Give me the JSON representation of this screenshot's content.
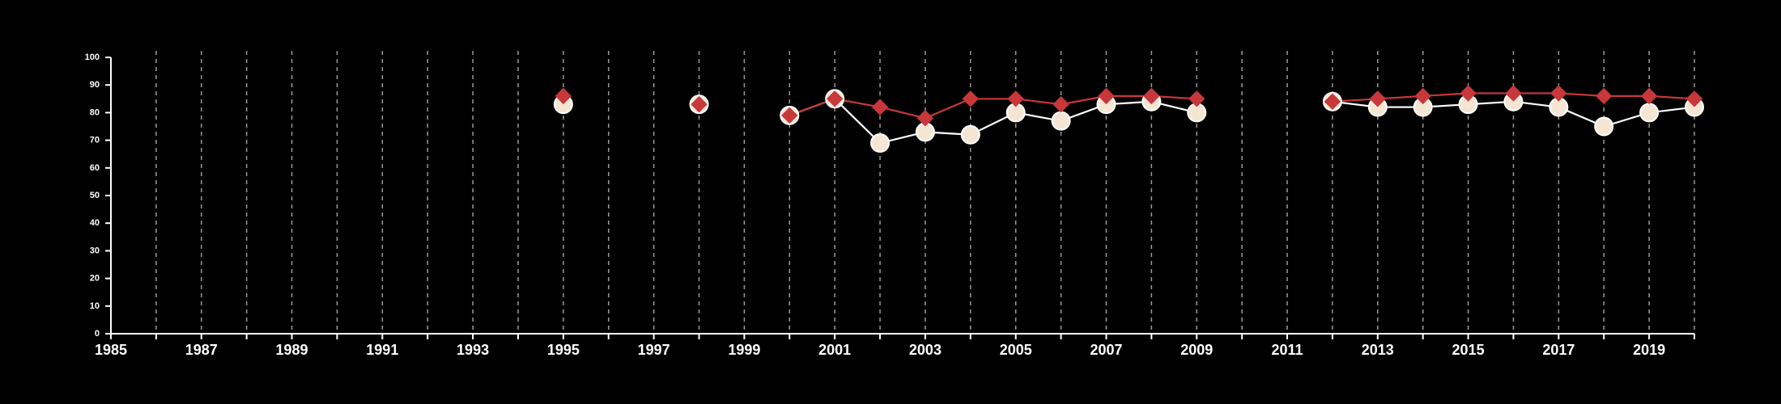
{
  "chart_data": {
    "type": "line",
    "title": "",
    "xlabel": "",
    "ylabel": "",
    "xlim": [
      1985,
      2020
    ],
    "ylim": [
      0,
      100
    ],
    "x_tick_labels": [
      "1985",
      "1987",
      "1989",
      "1991",
      "1993",
      "1995",
      "1997",
      "1999",
      "2001",
      "2003",
      "2005",
      "2007",
      "2009",
      "2011",
      "2013",
      "2015",
      "2017",
      "2019"
    ],
    "y_tick_labels": [
      "0",
      "10",
      "20",
      "30",
      "40",
      "50",
      "60",
      "70",
      "80",
      "90",
      "100"
    ],
    "grid": "vertical dashed lines at every year",
    "legend": "none",
    "colors": {
      "background": "#000000",
      "axis": "#ffffff",
      "grid": "#9a9a9a",
      "red_series": "#c8373a",
      "white_series": "#ffffff",
      "white_series_fill": "#f5e6d3"
    },
    "series": [
      {
        "marker": "circle",
        "color": "#ffffff",
        "points": [
          [
            1995,
            83
          ],
          [
            1998,
            83
          ],
          [
            2000,
            79
          ],
          [
            2001,
            85
          ],
          [
            2002,
            69
          ],
          [
            2003,
            73
          ],
          [
            2004,
            72
          ],
          [
            2005,
            80
          ],
          [
            2006,
            77
          ],
          [
            2007,
            83
          ],
          [
            2008,
            84
          ],
          [
            2009,
            80
          ],
          [
            2012,
            84
          ],
          [
            2013,
            82
          ],
          [
            2014,
            82
          ],
          [
            2015,
            83
          ],
          [
            2016,
            84
          ],
          [
            2017,
            82
          ],
          [
            2018,
            75
          ],
          [
            2019,
            80
          ],
          [
            2020,
            82
          ]
        ]
      },
      {
        "marker": "diamond",
        "color": "#c8373a",
        "points": [
          [
            1995,
            86
          ],
          [
            1998,
            83
          ],
          [
            2000,
            79
          ],
          [
            2001,
            85
          ],
          [
            2002,
            82
          ],
          [
            2003,
            78
          ],
          [
            2004,
            85
          ],
          [
            2005,
            85
          ],
          [
            2006,
            83
          ],
          [
            2007,
            86
          ],
          [
            2008,
            86
          ],
          [
            2009,
            85
          ],
          [
            2012,
            84
          ],
          [
            2013,
            85
          ],
          [
            2014,
            86
          ],
          [
            2015,
            87
          ],
          [
            2016,
            87
          ],
          [
            2017,
            87
          ],
          [
            2018,
            86
          ],
          [
            2019,
            86
          ],
          [
            2020,
            85
          ]
        ]
      }
    ]
  }
}
